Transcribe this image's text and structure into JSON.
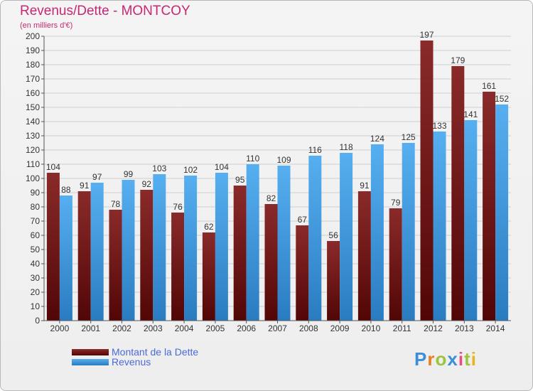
{
  "colors": {
    "dette": "#7a1f1f",
    "revenus": "#3a96dd",
    "title": "#c62873",
    "legend_text": "#4a6ad8"
  },
  "chart_data": {
    "type": "bar",
    "title": "Revenus/Dette - MONTCOY",
    "subtitle": "(en milliers d'€)",
    "categories": [
      "2000",
      "2001",
      "2002",
      "2003",
      "2004",
      "2005",
      "2006",
      "2007",
      "2008",
      "2009",
      "2010",
      "2011",
      "2012",
      "2013",
      "2014"
    ],
    "series": [
      {
        "name": "Montant de la Dette",
        "values": [
          104,
          91,
          78,
          92,
          76,
          62,
          95,
          82,
          67,
          56,
          91,
          79,
          197,
          179,
          161
        ]
      },
      {
        "name": "Revenus",
        "values": [
          88,
          97,
          99,
          103,
          102,
          104,
          110,
          109,
          116,
          118,
          124,
          125,
          133,
          141,
          152
        ]
      }
    ],
    "ylim": [
      0,
      200
    ],
    "ytick_step": 10,
    "grid": true,
    "legend_position": "bottom-left"
  },
  "logo": {
    "text": "Proxiti"
  }
}
